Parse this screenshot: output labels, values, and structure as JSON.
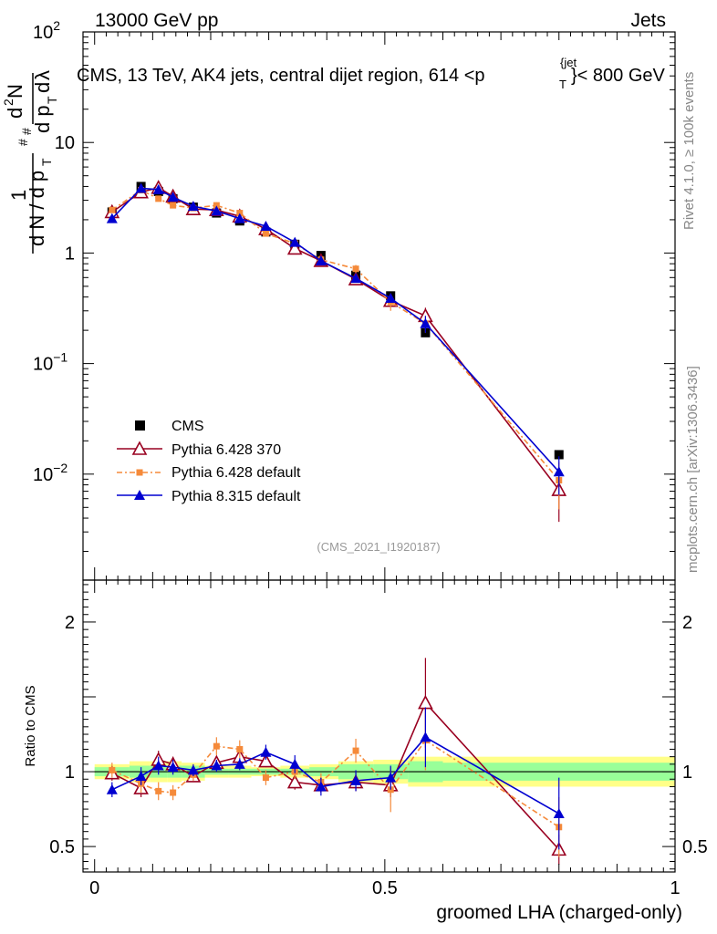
{
  "header": {
    "left": "13000 GeV pp",
    "right": "Jets"
  },
  "plot_title": {
    "main": "CMS, 13 TeV, AK4 jets, central dijet region, 614 <p",
    "sub": "T",
    "sup": "{jet",
    "tail": "}< 800 GeV"
  },
  "side_labels": {
    "rivet": "Rivet 4.1.0, ≥ 100k events",
    "mcplots": "mcplots.cern.ch [arXiv:1306.3436]"
  },
  "watermark": "(CMS_2021_I1920187)",
  "legend": {
    "cms": "CMS",
    "p6_370": "Pythia 6.428 370",
    "p6_def": "Pythia 6.428 default",
    "p8_def": "Pythia 8.315 default"
  },
  "colors": {
    "cms": "#000000",
    "p6_370": "#990020",
    "p6_def": "#f58a3a",
    "p8_def": "#0000d0",
    "band_inner": "#99ff99",
    "band_outer": "#ffff88"
  },
  "chart_data": [
    {
      "type": "line",
      "panel": "main",
      "title": "CMS, 13 TeV, AK4 jets, central dijet region, 614 <p_T^{jet}< 800 GeV",
      "xlabel": "groomed LHA (charged-only)",
      "ylabel": "1/(dN/dp_T) d²N/(dp_T dλ)",
      "yscale": "log",
      "xlim": [
        -0.02,
        1.0
      ],
      "ylim": [
        0.0011,
        100
      ],
      "y_ticks": [
        {
          "v": 0.01,
          "base": "10",
          "exp": "−2"
        },
        {
          "v": 0.1,
          "base": "10",
          "exp": "−1"
        },
        {
          "v": 1,
          "base": "1",
          "exp": ""
        },
        {
          "v": 10,
          "base": "10",
          "exp": ""
        },
        {
          "v": 100,
          "base": "10",
          "exp": "2"
        }
      ],
      "x": [
        0.03,
        0.08,
        0.11,
        0.135,
        0.17,
        0.21,
        0.25,
        0.295,
        0.345,
        0.39,
        0.45,
        0.51,
        0.57,
        0.8
      ],
      "series": [
        {
          "name": "CMS",
          "key": "cms",
          "marker": "square",
          "values": [
            2.35,
            4.0,
            3.6,
            3.1,
            2.6,
            2.3,
            1.95,
            1.55,
            1.2,
            0.95,
            0.63,
            0.41,
            0.19,
            0.015
          ],
          "err": [
            0.05,
            0.06,
            0.05,
            0.05,
            0.04,
            0.04,
            0.03,
            0.03,
            0.03,
            0.02,
            0.02,
            0.02,
            0.01,
            0.001
          ]
        },
        {
          "name": "Pythia 6.428 370",
          "key": "p6_370",
          "marker": "open-triangle",
          "dash": "",
          "values": [
            2.35,
            3.55,
            3.9,
            3.25,
            2.5,
            2.45,
            2.15,
            1.65,
            1.1,
            0.85,
            0.58,
            0.37,
            0.27,
            0.0072
          ],
          "err": [
            0.08,
            0.1,
            0.1,
            0.08,
            0.06,
            0.06,
            0.05,
            0.04,
            0.04,
            0.03,
            0.03,
            0.03,
            0.05,
            0.0035
          ]
        },
        {
          "name": "Pythia 6.428 default",
          "key": "p6_def",
          "marker": "small-square",
          "dash": "6,3,2,3",
          "values": [
            2.45,
            3.7,
            3.1,
            2.7,
            2.55,
            2.7,
            2.3,
            1.5,
            1.22,
            0.87,
            0.72,
            0.36,
            0.23,
            0.0088
          ],
          "err": [
            0.08,
            0.1,
            0.1,
            0.08,
            0.06,
            0.07,
            0.06,
            0.04,
            0.04,
            0.03,
            0.06,
            0.06,
            0.04,
            0.004
          ]
        },
        {
          "name": "Pythia 8.315 default",
          "key": "p8_def",
          "marker": "triangle",
          "dash": "",
          "values": [
            2.05,
            3.85,
            3.75,
            3.2,
            2.65,
            2.4,
            2.05,
            1.75,
            1.25,
            0.85,
            0.59,
            0.39,
            0.23,
            0.0105
          ],
          "err": [
            0.08,
            0.1,
            0.1,
            0.08,
            0.06,
            0.06,
            0.05,
            0.04,
            0.04,
            0.03,
            0.03,
            0.03,
            0.04,
            0.004
          ]
        }
      ]
    },
    {
      "type": "line",
      "panel": "ratio",
      "ylabel": "Ratio to CMS",
      "xlabel": "groomed LHA (charged-only)",
      "xlim": [
        -0.02,
        1.0
      ],
      "ylim": [
        0.33,
        2.28
      ],
      "x_ticks": [
        {
          "v": 0,
          "label": "0"
        },
        {
          "v": 0.5,
          "label": "0.5"
        },
        {
          "v": 1,
          "label": "1"
        }
      ],
      "y_ticks": [
        {
          "v": 0.5,
          "label": "0.5"
        },
        {
          "v": 1,
          "label": "1"
        },
        {
          "v": 2,
          "label": "2"
        }
      ],
      "bands": [
        {
          "x0": 0.0,
          "x1": 0.06,
          "inner": 0.03,
          "outer": 0.05
        },
        {
          "x0": 0.06,
          "x1": 0.095,
          "inner": 0.04,
          "outer": 0.07
        },
        {
          "x0": 0.095,
          "x1": 0.125,
          "inner": 0.04,
          "outer": 0.07
        },
        {
          "x0": 0.125,
          "x1": 0.15,
          "inner": 0.04,
          "outer": 0.07
        },
        {
          "x0": 0.15,
          "x1": 0.19,
          "inner": 0.04,
          "outer": 0.06
        },
        {
          "x0": 0.19,
          "x1": 0.23,
          "inner": 0.02,
          "outer": 0.04
        },
        {
          "x0": 0.23,
          "x1": 0.27,
          "inner": 0.02,
          "outer": 0.04
        },
        {
          "x0": 0.27,
          "x1": 0.32,
          "inner": 0.02,
          "outer": 0.03
        },
        {
          "x0": 0.32,
          "x1": 0.37,
          "inner": 0.02,
          "outer": 0.04
        },
        {
          "x0": 0.37,
          "x1": 0.42,
          "inner": 0.03,
          "outer": 0.05
        },
        {
          "x0": 0.42,
          "x1": 0.48,
          "inner": 0.05,
          "outer": 0.07
        },
        {
          "x0": 0.48,
          "x1": 0.54,
          "inner": 0.05,
          "outer": 0.08
        },
        {
          "x0": 0.54,
          "x1": 0.6,
          "inner": 0.07,
          "outer": 0.1
        },
        {
          "x0": 0.6,
          "x1": 1.0,
          "inner": 0.06,
          "outer": 0.1
        }
      ],
      "x": [
        0.03,
        0.08,
        0.11,
        0.135,
        0.17,
        0.21,
        0.25,
        0.295,
        0.345,
        0.39,
        0.45,
        0.51,
        0.57,
        0.8
      ],
      "series": [
        {
          "name": "Pythia 6.428 370",
          "key": "p6_370",
          "marker": "open-triangle",
          "dash": "",
          "values": [
            0.99,
            0.89,
            1.08,
            1.05,
            0.97,
            1.06,
            1.1,
            1.07,
            0.93,
            0.91,
            0.93,
            0.91,
            1.46,
            0.48
          ],
          "err": [
            0.05,
            0.06,
            0.06,
            0.05,
            0.04,
            0.04,
            0.04,
            0.04,
            0.05,
            0.05,
            0.06,
            0.08,
            0.3,
            0.1
          ]
        },
        {
          "name": "Pythia 6.428 default",
          "key": "p6_def",
          "marker": "small-square",
          "dash": "6,3,2,3",
          "values": [
            1.01,
            0.92,
            0.87,
            0.86,
            0.98,
            1.17,
            1.15,
            0.96,
            1.0,
            0.93,
            1.14,
            0.88,
            1.21,
            0.63
          ],
          "err": [
            0.05,
            0.06,
            0.06,
            0.05,
            0.04,
            0.06,
            0.06,
            0.05,
            0.05,
            0.06,
            0.08,
            0.15,
            0.2,
            0.2
          ]
        },
        {
          "name": "Pythia 8.315 default",
          "key": "p8_def",
          "marker": "triangle",
          "dash": "",
          "values": [
            0.88,
            0.97,
            1.04,
            1.03,
            1.01,
            1.04,
            1.05,
            1.13,
            1.05,
            0.9,
            0.94,
            0.96,
            1.23,
            0.72
          ],
          "err": [
            0.05,
            0.06,
            0.06,
            0.05,
            0.04,
            0.04,
            0.04,
            0.05,
            0.06,
            0.06,
            0.07,
            0.08,
            0.2,
            0.24
          ]
        }
      ]
    }
  ]
}
